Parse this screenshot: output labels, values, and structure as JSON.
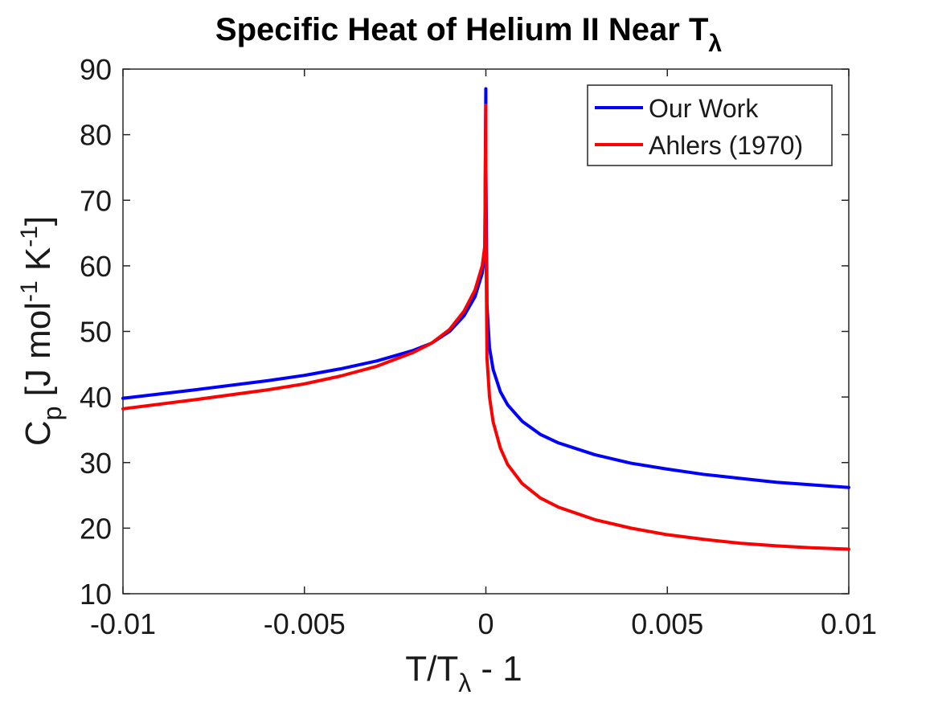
{
  "chart_data": {
    "type": "line",
    "title": "Specific Heat of Helium II Near T",
    "title_subscript": "λ",
    "xlabel": "T/T",
    "xlabel_subscript": "λ",
    "xlabel_suffix": " - 1",
    "ylabel": "C",
    "ylabel_subscript": "p",
    "ylabel_units": " [J mol",
    "ylabel_units_sup1": "-1",
    "ylabel_units_mid": " K",
    "ylabel_units_sup2": "-1",
    "ylabel_units_end": "]",
    "xlim": [
      -0.01,
      0.01
    ],
    "ylim": [
      10,
      90
    ],
    "x_ticks": [
      -0.01,
      -0.005,
      0,
      0.005,
      0.01
    ],
    "x_tick_labels": [
      "-0.01",
      "-0.005",
      "0",
      "0.005",
      "0.01"
    ],
    "y_ticks": [
      10,
      20,
      30,
      40,
      50,
      60,
      70,
      80,
      90
    ],
    "y_tick_labels": [
      "10",
      "20",
      "30",
      "40",
      "50",
      "60",
      "70",
      "80",
      "90"
    ],
    "grid": false,
    "legend_position": "top-right",
    "series": [
      {
        "name": "Our Work",
        "color": "#0000ff",
        "x": [
          -0.01,
          -0.008,
          -0.006,
          -0.005,
          -0.004,
          -0.003,
          -0.002,
          -0.0015,
          -0.001,
          -0.0006,
          -0.0003,
          -0.0001,
          -3e-05,
          -1e-06,
          1e-06,
          3e-05,
          0.0001,
          0.0002,
          0.0004,
          0.0006,
          0.001,
          0.0015,
          0.002,
          0.003,
          0.004,
          0.005,
          0.006,
          0.007,
          0.008,
          0.009,
          0.01
        ],
        "y": [
          39.8,
          41.1,
          42.5,
          43.3,
          44.3,
          45.5,
          47.1,
          48.2,
          50.0,
          52.4,
          55.3,
          58.9,
          62.0,
          87.0,
          75.0,
          54.0,
          47.5,
          44.2,
          40.8,
          38.8,
          36.3,
          34.3,
          33.0,
          31.2,
          29.9,
          29.0,
          28.2,
          27.6,
          27.0,
          26.6,
          26.2
        ]
      },
      {
        "name": "Ahlers (1970)",
        "color": "#ff0000",
        "x": [
          -0.01,
          -0.008,
          -0.006,
          -0.005,
          -0.004,
          -0.003,
          -0.002,
          -0.0015,
          -0.001,
          -0.0006,
          -0.0003,
          -0.0001,
          -3e-05,
          -1e-06,
          1e-06,
          3e-05,
          0.0001,
          0.0002,
          0.0004,
          0.0006,
          0.001,
          0.0015,
          0.002,
          0.003,
          0.004,
          0.005,
          0.006,
          0.007,
          0.008,
          0.009,
          0.01
        ],
        "y": [
          38.2,
          39.6,
          41.1,
          42.0,
          43.2,
          44.7,
          46.8,
          48.2,
          50.3,
          53.1,
          56.3,
          60.0,
          63.0,
          84.5,
          66.0,
          46.0,
          40.0,
          36.2,
          32.2,
          29.7,
          26.8,
          24.6,
          23.2,
          21.3,
          20.0,
          19.0,
          18.3,
          17.7,
          17.3,
          17.0,
          16.8
        ]
      }
    ]
  }
}
